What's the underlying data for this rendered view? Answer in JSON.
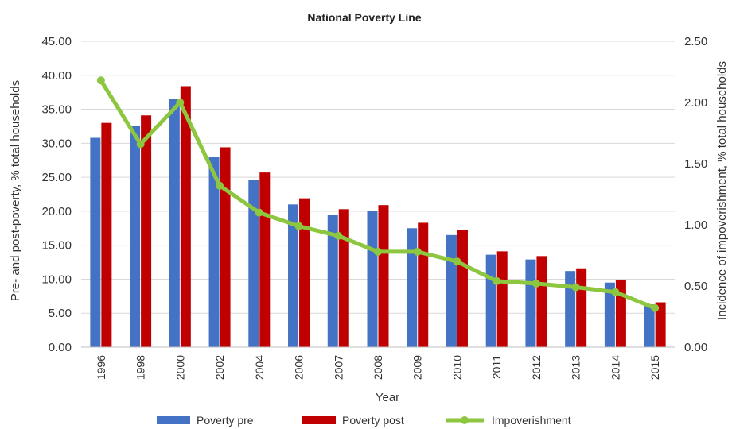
{
  "chart_data": {
    "type": "bar",
    "title": "National Poverty Line",
    "xlabel": "Year",
    "ylabel_left": "Pre- and post-poverty, % total households",
    "ylabel_right": "Incidence of impoverishment, % total households",
    "ylim_left": [
      0,
      45
    ],
    "ylim_right": [
      0,
      2.5
    ],
    "yticks_left": [
      "0.00",
      "5.00",
      "10.00",
      "15.00",
      "20.00",
      "25.00",
      "30.00",
      "35.00",
      "40.00",
      "45.00"
    ],
    "yticks_right": [
      "0.00",
      "0.50",
      "1.00",
      "1.50",
      "2.00",
      "2.50"
    ],
    "grid": "horizontal",
    "legend_position": "bottom",
    "categories": [
      "1996",
      "1998",
      "2000",
      "2002",
      "2004",
      "2006",
      "2007",
      "2008",
      "2009",
      "2010",
      "2011",
      "2012",
      "2013",
      "2014",
      "2015"
    ],
    "series": [
      {
        "name": "Poverty pre",
        "type": "bar",
        "axis": "left",
        "color": "#4472C4",
        "values": [
          30.8,
          32.6,
          36.5,
          28.0,
          24.6,
          21.0,
          19.4,
          20.1,
          17.5,
          16.5,
          13.6,
          12.9,
          11.2,
          9.5,
          6.3
        ]
      },
      {
        "name": "Poverty post",
        "type": "bar",
        "axis": "left",
        "color": "#C00000",
        "values": [
          33.0,
          34.1,
          38.4,
          29.4,
          25.7,
          21.9,
          20.3,
          20.9,
          18.3,
          17.2,
          14.1,
          13.4,
          11.6,
          9.9,
          6.6
        ]
      },
      {
        "name": "Impoverishment",
        "type": "line",
        "axis": "right",
        "color": "#8DC63F",
        "values": [
          2.18,
          1.66,
          2.0,
          1.32,
          1.1,
          0.99,
          0.91,
          0.78,
          0.78,
          0.7,
          0.54,
          0.52,
          0.49,
          0.45,
          0.32
        ]
      }
    ]
  }
}
